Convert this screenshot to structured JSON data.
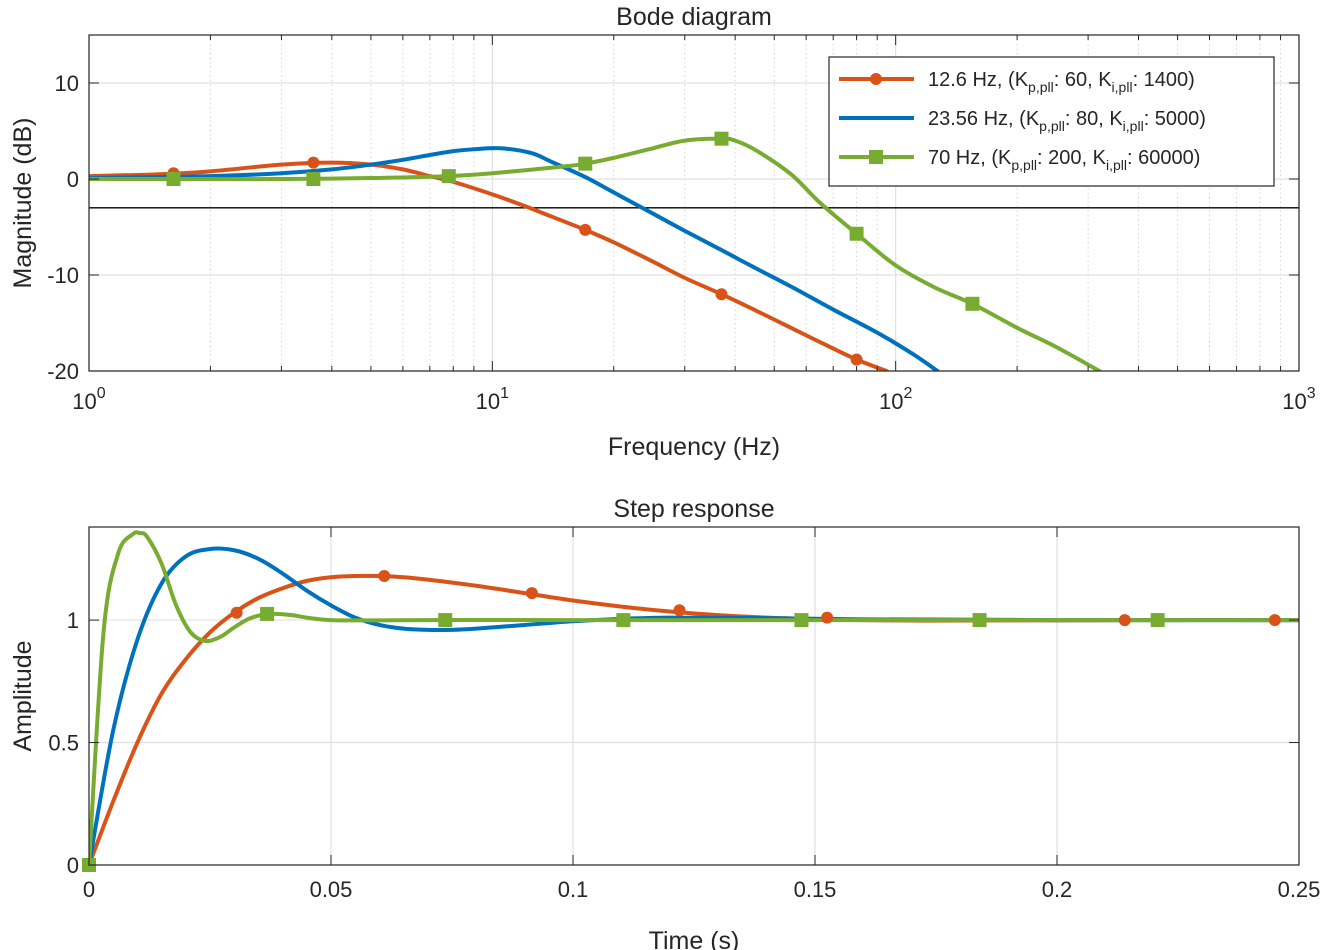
{
  "chart_data": [
    {
      "type": "line",
      "title": "Bode diagram",
      "xlabel": "Frequency (Hz)",
      "ylabel": "Magnitude (dB)",
      "xscale": "log",
      "xlim": [
        1,
        1000
      ],
      "ylim": [
        -20,
        15
      ],
      "xticks": [
        1,
        10,
        100,
        1000
      ],
      "yticks": [
        -20,
        -10,
        0,
        10
      ],
      "ytick_labels": [
        "-20",
        "-10",
        "0",
        "10"
      ],
      "grid": true,
      "legend_position": "top-right",
      "reference_line_db": -3,
      "series": [
        {
          "name": "12.6 Hz, (Kp,pll: 60, Ki,pll: 1400)",
          "label": {
            "pre": "12.6 Hz, (K",
            "sub1": "p,pll",
            "mid": ": 60, K",
            "sub2": "i,pll",
            "post": ": 1400)"
          },
          "color": "#d95319",
          "marker": "circle",
          "x": [
            1,
            1.5,
            2,
            3,
            4,
            5,
            6,
            7,
            8,
            10,
            12,
            14,
            17,
            20,
            25,
            30,
            37,
            45,
            55,
            65,
            80,
            95
          ],
          "y": [
            0.3,
            0.5,
            0.8,
            1.5,
            1.7,
            1.5,
            1.0,
            0.3,
            -0.3,
            -1.6,
            -2.8,
            -3.9,
            -5.3,
            -6.6,
            -8.6,
            -10.3,
            -12.0,
            -13.7,
            -15.5,
            -17.0,
            -18.8,
            -20.0
          ],
          "markers_x": [
            1.62,
            3.6,
            7.8,
            17,
            37,
            80
          ],
          "markers_y": [
            0.6,
            1.7,
            0.3,
            -5.3,
            -12.0,
            -18.8
          ]
        },
        {
          "name": "23.56 Hz, (Kp,pll: 80, Ki,pll: 5000)",
          "label": {
            "pre": "23.56 Hz, (K",
            "sub1": "p,pll",
            "mid": ": 80, K",
            "sub2": "i,pll",
            "post": ": 5000)"
          },
          "color": "#0072bd",
          "marker": "none",
          "x": [
            1,
            2,
            3,
            4,
            5,
            6,
            7,
            8,
            9,
            10.5,
            12.5,
            14,
            17,
            20,
            25,
            30,
            37,
            45,
            55,
            70,
            90,
            110,
            127
          ],
          "y": [
            0.1,
            0.3,
            0.6,
            1.0,
            1.5,
            2.0,
            2.5,
            2.9,
            3.1,
            3.2,
            2.7,
            1.8,
            0.2,
            -1.4,
            -3.6,
            -5.4,
            -7.4,
            -9.3,
            -11.2,
            -13.6,
            -16.0,
            -18.2,
            -20.0
          ]
        },
        {
          "name": "70 Hz, (Kp,pll: 200, Ki,pll: 60000)",
          "label": {
            "pre": "70 Hz, (K",
            "sub1": "p,pll",
            "mid": ": 200,  K",
            "sub2": "i,pll",
            "post": ": 60000)"
          },
          "color": "#77ac30",
          "marker": "square",
          "x": [
            1,
            2,
            3,
            5,
            7.8,
            10,
            15,
            17,
            20,
            25,
            30,
            37,
            40,
            45,
            55,
            65,
            80,
            100,
            125,
            155,
            200,
            250,
            320
          ],
          "y": [
            0.0,
            0.0,
            0.0,
            0.1,
            0.3,
            0.6,
            1.3,
            1.6,
            2.2,
            3.2,
            4.0,
            4.2,
            4.0,
            3.0,
            0.5,
            -2.5,
            -5.7,
            -9.0,
            -11.3,
            -13.0,
            -15.5,
            -17.5,
            -20.0
          ],
          "markers_x": [
            1.62,
            3.6,
            7.8,
            17,
            37,
            80,
            155
          ],
          "markers_y": [
            0.0,
            0.0,
            0.3,
            1.6,
            4.2,
            -5.7,
            -13.0
          ]
        }
      ]
    },
    {
      "type": "line",
      "title": "Step response",
      "xlabel": "Time (s)",
      "ylabel": "Amplitude",
      "xlim": [
        0,
        0.25
      ],
      "ylim": [
        0,
        1.38
      ],
      "xticks": [
        0,
        0.05,
        0.1,
        0.15,
        0.2,
        0.25
      ],
      "xtick_labels": [
        "0",
        "0.05",
        "0.1",
        "0.15",
        "0.2",
        "0.25"
      ],
      "yticks": [
        0,
        0.5,
        1
      ],
      "ytick_labels": [
        "0",
        "0.5",
        "1"
      ],
      "grid": true,
      "series": [
        {
          "name": "12.6 Hz",
          "color": "#d95319",
          "marker": "circle",
          "x": [
            0,
            0.005,
            0.01,
            0.015,
            0.02,
            0.025,
            0.03,
            0.035,
            0.04,
            0.045,
            0.05,
            0.055,
            0.06,
            0.065,
            0.07,
            0.08,
            0.09,
            0.1,
            0.11,
            0.12,
            0.13,
            0.14,
            0.15,
            0.16,
            0.17,
            0.18,
            0.2,
            0.22,
            0.25
          ],
          "y": [
            0,
            0.26,
            0.5,
            0.7,
            0.84,
            0.95,
            1.03,
            1.09,
            1.13,
            1.16,
            1.175,
            1.18,
            1.18,
            1.175,
            1.165,
            1.14,
            1.11,
            1.08,
            1.055,
            1.035,
            1.02,
            1.01,
            1.004,
            1.0,
            0.998,
            0.998,
            0.999,
            1.0,
            1.0
          ],
          "markers_x": [
            0,
            0.0305,
            0.061,
            0.0915,
            0.122,
            0.1525,
            0.214,
            0.245
          ],
          "markers_y": [
            0,
            1.03,
            1.18,
            1.11,
            1.04,
            1.01,
            1.0,
            1.0
          ]
        },
        {
          "name": "23.56 Hz",
          "color": "#0072bd",
          "marker": "none",
          "x": [
            0,
            0.005,
            0.01,
            0.015,
            0.02,
            0.025,
            0.03,
            0.035,
            0.04,
            0.045,
            0.05,
            0.055,
            0.06,
            0.065,
            0.07,
            0.075,
            0.08,
            0.09,
            0.1,
            0.11,
            0.12,
            0.14,
            0.16,
            0.2,
            0.25
          ],
          "y": [
            0,
            0.55,
            0.92,
            1.15,
            1.26,
            1.29,
            1.285,
            1.25,
            1.19,
            1.12,
            1.06,
            1.01,
            0.98,
            0.965,
            0.96,
            0.96,
            0.965,
            0.98,
            0.995,
            1.005,
            1.01,
            1.008,
            1.003,
            1.0,
            1.0
          ]
        },
        {
          "name": "70 Hz",
          "color": "#77ac30",
          "marker": "square",
          "x": [
            0,
            0.003,
            0.006,
            0.009,
            0.0105,
            0.012,
            0.015,
            0.018,
            0.021,
            0.024,
            0.027,
            0.03,
            0.033,
            0.036,
            0.039,
            0.042,
            0.045,
            0.05,
            0.06,
            0.07,
            0.1,
            0.25
          ],
          "y": [
            0,
            0.95,
            1.27,
            1.35,
            1.355,
            1.34,
            1.23,
            1.06,
            0.95,
            0.915,
            0.93,
            0.97,
            1.005,
            1.022,
            1.025,
            1.02,
            1.01,
            1.0,
            0.999,
            1.0,
            1.0,
            1.0
          ],
          "markers_x": [
            0,
            0.0368,
            0.0736,
            0.1104,
            0.1472,
            0.184,
            0.2208
          ],
          "markers_y": [
            0,
            1.025,
            1.0,
            1.0,
            1.0,
            1.0,
            1.0
          ]
        }
      ]
    }
  ]
}
